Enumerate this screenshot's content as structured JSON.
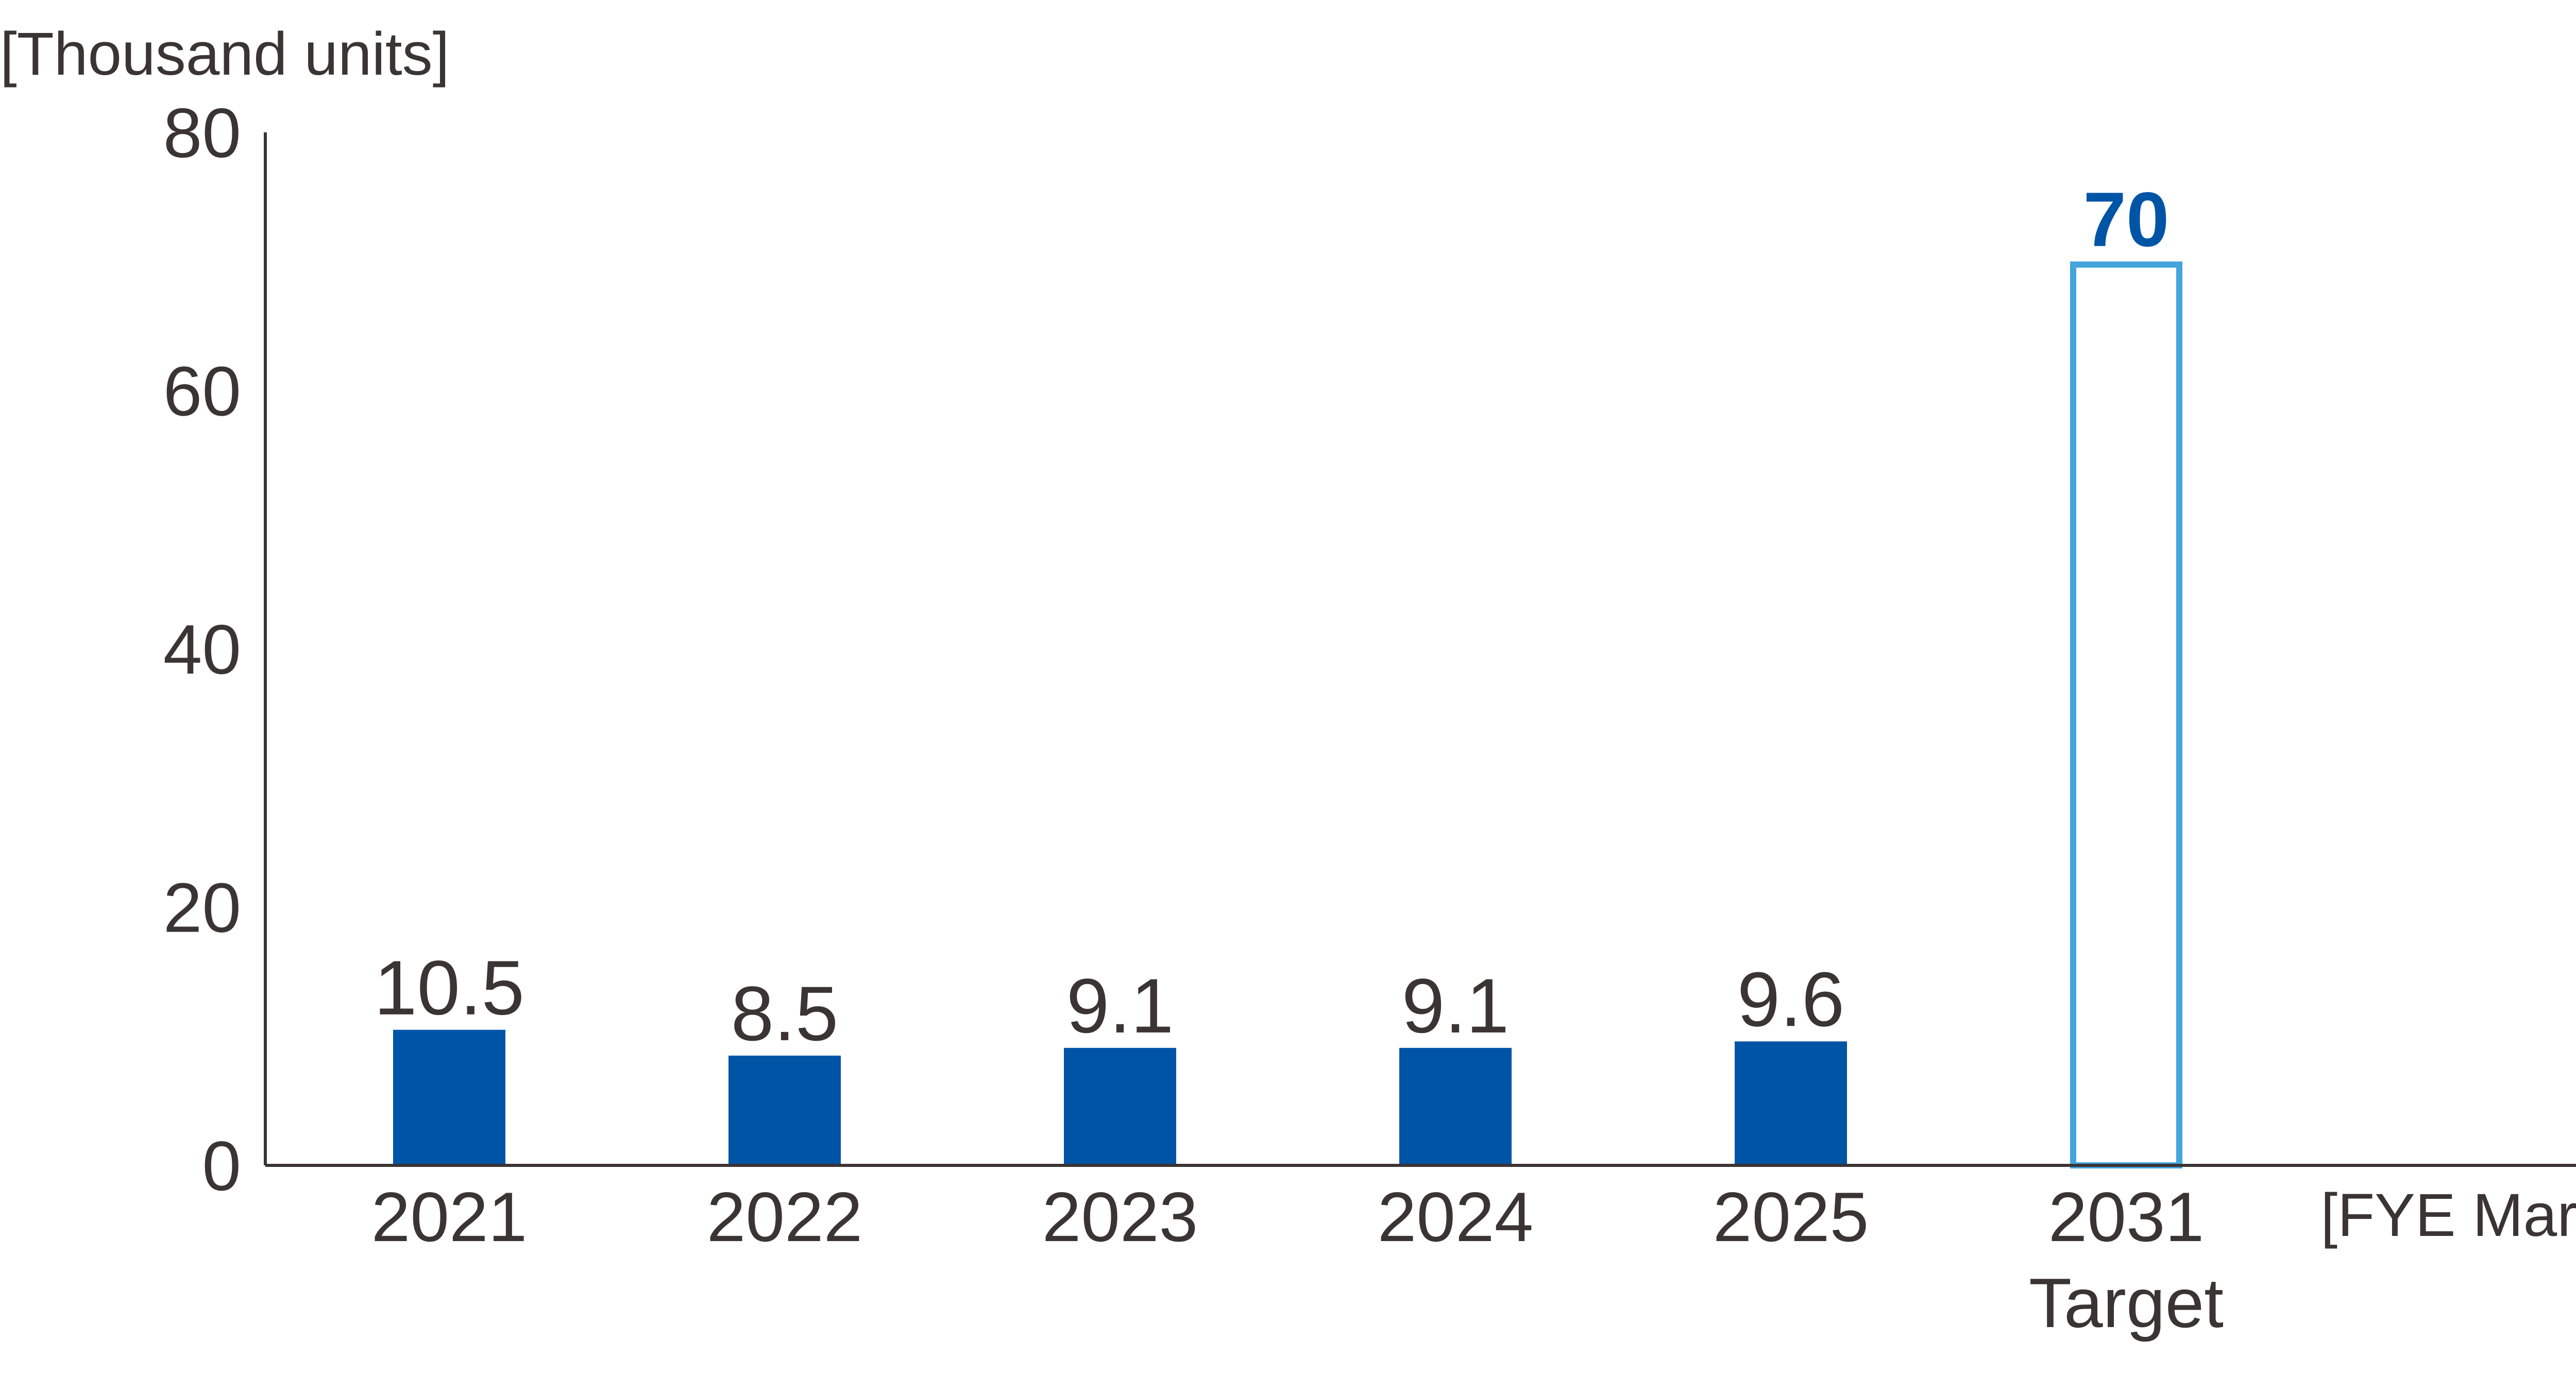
{
  "colors": {
    "text": "#3a3433",
    "bar": "#0054a6",
    "target_outline": "#44a4dc",
    "target_label": "#0054a6",
    "axis": "#3a3433"
  },
  "chart_data": {
    "type": "bar",
    "ylabel": "[Thousand units]",
    "xlabel": "[FYE March]",
    "ylim": [
      0,
      80
    ],
    "yticks": [
      0,
      20,
      40,
      60,
      80
    ],
    "grid": false,
    "categories": [
      {
        "label": "2021",
        "sublabel": "",
        "value": 10.5,
        "value_label": "10.5",
        "style": "solid"
      },
      {
        "label": "2022",
        "sublabel": "",
        "value": 8.5,
        "value_label": "8.5",
        "style": "solid"
      },
      {
        "label": "2023",
        "sublabel": "",
        "value": 9.1,
        "value_label": "9.1",
        "style": "solid"
      },
      {
        "label": "2024",
        "sublabel": "",
        "value": 9.1,
        "value_label": "9.1",
        "style": "solid"
      },
      {
        "label": "2025",
        "sublabel": "",
        "value": 9.6,
        "value_label": "9.6",
        "style": "solid"
      },
      {
        "label": "2031",
        "sublabel": "Target",
        "value": 70,
        "value_label": "70",
        "style": "target"
      }
    ]
  }
}
